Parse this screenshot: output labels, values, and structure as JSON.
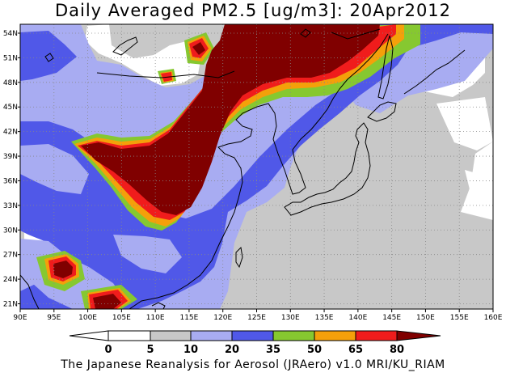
{
  "title": "Daily Averaged PM2.5 [ug/m3]: 20Apr2012",
  "credit": "The Japanese Reanalysis for Aerosol (JRAero) v1.0 MRI/KU_RIAM",
  "lon_ticks": [
    "90E",
    "95E",
    "100E",
    "105E",
    "110E",
    "115E",
    "120E",
    "125E",
    "130E",
    "135E",
    "140E",
    "145E",
    "150E",
    "155E",
    "160E"
  ],
  "lat_ticks": [
    "21N",
    "24N",
    "27N",
    "30N",
    "33N",
    "36N",
    "39N",
    "42N",
    "45N",
    "48N",
    "51N",
    "54N"
  ],
  "colorbar": {
    "labels": [
      "0",
      "5",
      "10",
      "20",
      "35",
      "50",
      "65",
      "80"
    ],
    "classes": [
      {
        "range": "<0",
        "color": "#ffffff"
      },
      {
        "range": "0-5",
        "color": "#ffffff"
      },
      {
        "range": "5-10",
        "color": "#c8c8c8"
      },
      {
        "range": "10-20",
        "color": "#a8acf2"
      },
      {
        "range": "20-35",
        "color": "#5058e8"
      },
      {
        "range": "35-50",
        "color": "#86c830"
      },
      {
        "range": "50-65",
        "color": "#f4a00a"
      },
      {
        "range": "65-80",
        "color": "#f01c1c"
      },
      {
        "range": ">80",
        "color": "#800000"
      }
    ]
  }
}
